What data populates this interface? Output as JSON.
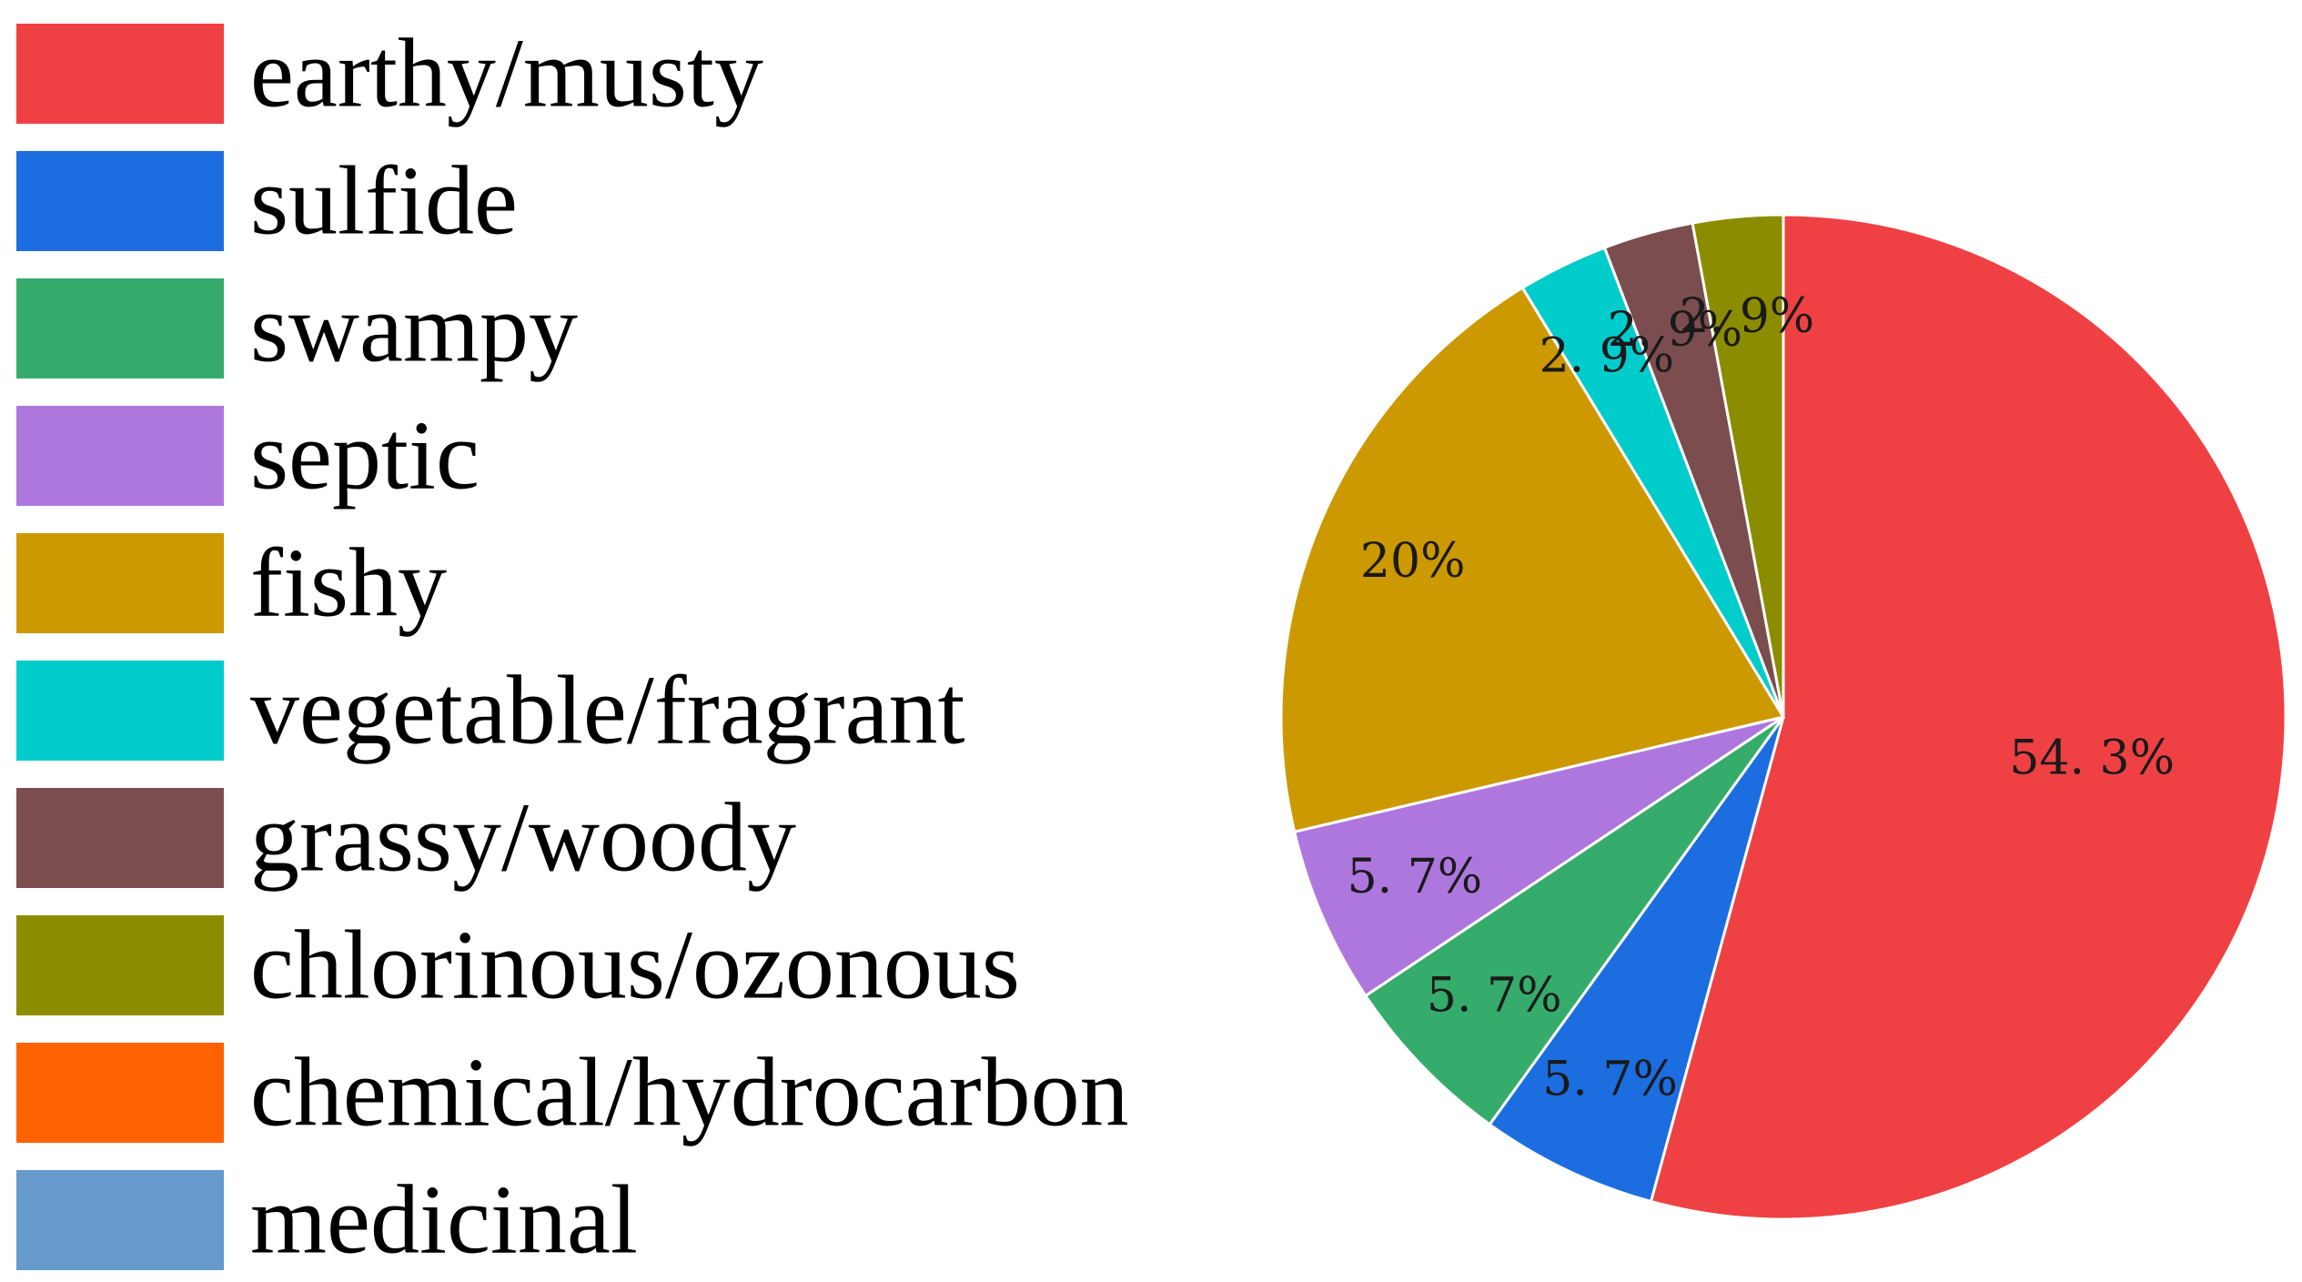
{
  "chart_data": {
    "type": "pie",
    "title": "",
    "legend_position": "left",
    "start": "top, clockwise",
    "slices": [
      {
        "name": "earthy/musty",
        "value": 54.3,
        "label": "54. 3%",
        "color": "#EF4144"
      },
      {
        "name": "sulfide",
        "value": 5.7,
        "label": "5. 7%",
        "color": "#1C6EE0"
      },
      {
        "name": "swampy",
        "value": 5.7,
        "label": "5. 7%",
        "color": "#35AC6B"
      },
      {
        "name": "septic",
        "value": 5.7,
        "label": "5. 7%",
        "color": "#AE77DE"
      },
      {
        "name": "fishy",
        "value": 20.0,
        "label": "20%",
        "color": "#CC9900"
      },
      {
        "name": "vegetable/fragrant",
        "value": 2.9,
        "label": "2. 9%",
        "color": "#00CCCC"
      },
      {
        "name": "grassy/woody",
        "value": 2.9,
        "label": "2. 9%",
        "color": "#7B4D4F"
      },
      {
        "name": "chlorinous/ozonous",
        "value": 2.9,
        "label": "2. 9%",
        "color": "#8C8C00"
      },
      {
        "name": "chemical/hydrocarbon",
        "value": 0,
        "label": "",
        "color": "#FF6200"
      },
      {
        "name": "medicinal",
        "value": 0,
        "label": "",
        "color": "#6699CC"
      }
    ]
  }
}
